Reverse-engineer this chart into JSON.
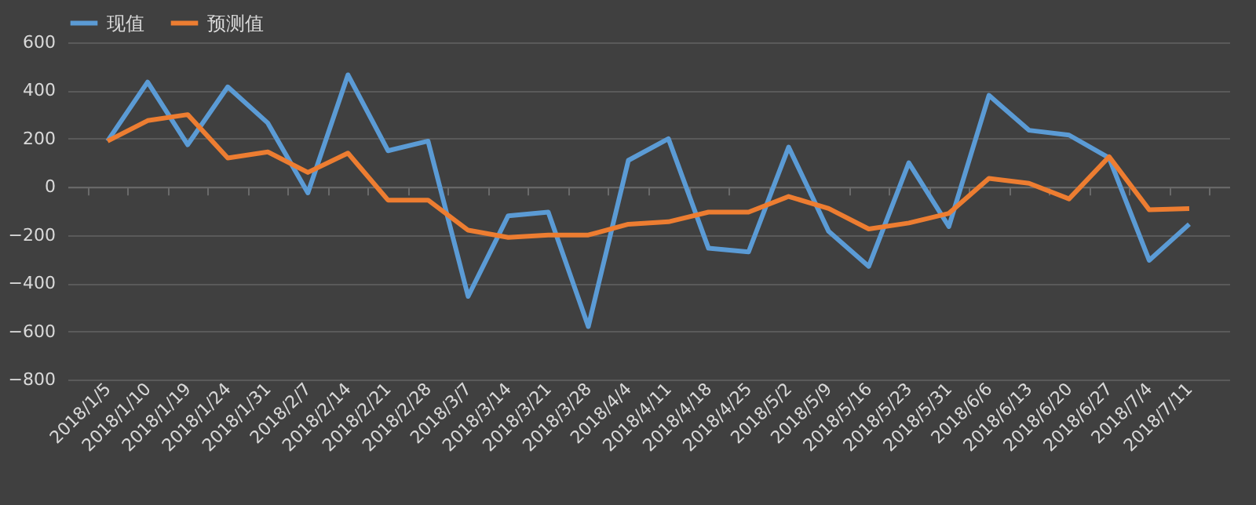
{
  "chart_data": {
    "type": "line",
    "categories": [
      "2018/1/5",
      "2018/1/10",
      "2018/1/19",
      "2018/1/24",
      "2018/1/31",
      "2018/2/7",
      "2018/2/14",
      "2018/2/21",
      "2018/2/28",
      "2018/3/7",
      "2018/3/14",
      "2018/3/21",
      "2018/3/28",
      "2018/4/4",
      "2018/4/11",
      "2018/4/18",
      "2018/4/25",
      "2018/5/2",
      "2018/5/9",
      "2018/5/16",
      "2018/5/23",
      "2018/5/31",
      "2018/6/6",
      "2018/6/13",
      "2018/6/20",
      "2018/6/27",
      "2018/7/4",
      "2018/7/11"
    ],
    "series": [
      {
        "name": "现值",
        "color": "#5b9bd5",
        "values": [
          190,
          435,
          175,
          415,
          265,
          -25,
          465,
          150,
          190,
          -455,
          -120,
          -105,
          -580,
          110,
          200,
          -255,
          -270,
          165,
          -185,
          -330,
          100,
          -165,
          380,
          235,
          215,
          120,
          -305,
          -155
        ]
      },
      {
        "name": "预测值",
        "color": "#ed7d31",
        "values": [
          190,
          275,
          300,
          120,
          145,
          60,
          140,
          -55,
          -55,
          -180,
          -210,
          -200,
          -200,
          -155,
          -145,
          -105,
          -105,
          -40,
          -90,
          -175,
          -150,
          -110,
          35,
          15,
          -50,
          125,
          -95,
          -90
        ]
      }
    ],
    "ylim": [
      -800,
      600
    ],
    "yticks": [
      -800,
      -600,
      -400,
      -200,
      0,
      200,
      400,
      600
    ],
    "grid": "y",
    "legend": "top",
    "marker": "none",
    "line_style": "solid"
  }
}
